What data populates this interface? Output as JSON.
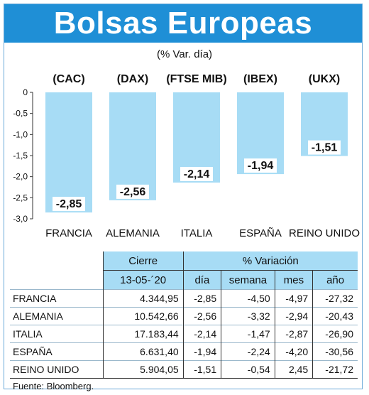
{
  "header": {
    "title": "Bolsas Europeas",
    "subtitle": "(% Var. día)"
  },
  "chart_data": {
    "type": "bar",
    "indices": [
      "(CAC)",
      "(DAX)",
      "(FTSE MIB)",
      "(IBEX)",
      "(UKX)"
    ],
    "categories": [
      "FRANCIA",
      "ALEMANIA",
      "ITALIA",
      "ESPAÑA",
      "REINO UNIDO"
    ],
    "values": [
      -2.85,
      -2.56,
      -2.14,
      -1.94,
      -1.51
    ],
    "value_labels": [
      "-2,85",
      "-2,56",
      "-2,14",
      "-1,94",
      "-1,51"
    ],
    "yticks": [
      0,
      -0.5,
      -1.0,
      -1.5,
      -2.0,
      -2.5,
      -3.0
    ],
    "ytick_labels": [
      "0",
      "-0,5",
      "-1,0",
      "-1,5",
      "-2,0",
      "-2,5",
      "-3,0"
    ],
    "ylim": [
      -3.0,
      0
    ],
    "bar_color": "#a7dcf5",
    "label_bg": "#ffffff"
  },
  "table": {
    "headers": {
      "cierre": "Cierre",
      "date": "13-05-´20",
      "variacion": "% Variación",
      "dia": "día",
      "semana": "semana",
      "mes": "mes",
      "anio": "año"
    },
    "rows": [
      {
        "name": "FRANCIA",
        "cierre": "4.344,95",
        "dia": "-2,85",
        "semana": "-4,50",
        "mes": "-4,97",
        "anio": "-27,32"
      },
      {
        "name": "ALEMANIA",
        "cierre": "10.542,66",
        "dia": "-2,56",
        "semana": "-3,32",
        "mes": "-2,94",
        "anio": "-20,43"
      },
      {
        "name": "ITALIA",
        "cierre": "17.183,44",
        "dia": "-2,14",
        "semana": "-1,47",
        "mes": "-2,87",
        "anio": "-26,90"
      },
      {
        "name": "ESPAÑA",
        "cierre": "6.631,40",
        "dia": "-1,94",
        "semana": "-2,24",
        "mes": "-4,20",
        "anio": "-30,56"
      },
      {
        "name": "REINO UNIDO",
        "cierre": "5.904,05",
        "dia": "-1,51",
        "semana": "-0,54",
        "mes": "2,45",
        "anio": "-21,72"
      }
    ]
  },
  "source": "Fuente: Bloomberg.",
  "colors": {
    "banner": "#1f8fd6",
    "header_fill": "#a7dcf5"
  }
}
